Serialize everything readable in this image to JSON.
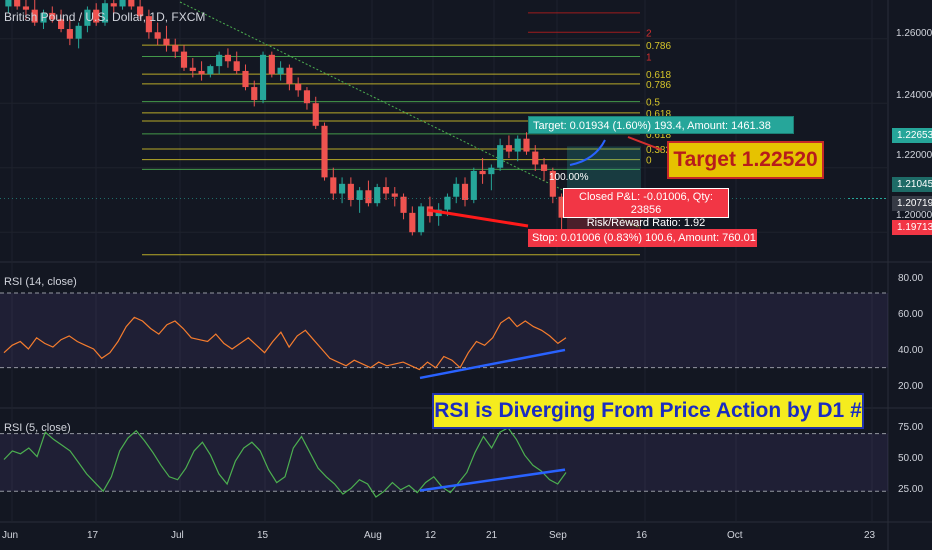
{
  "title": "British Pound / U.S. Dollar, 1D, FXCM",
  "rsi14_title": "RSI (14, close)",
  "rsi5_title": "RSI (5, close)",
  "colors": {
    "background": "#131722",
    "up": "#26a69a",
    "down": "#ef5350",
    "rsi14_line": "#f57c2e",
    "rsi5_line": "#4caf50",
    "divergence_line": "#2962ff",
    "trend_line": "#4caf50",
    "fib_line": "#d4c42a"
  },
  "annotations": {
    "target_box": "Target: 0.01934 (1.60%) 193.4, Amount: 1461.38",
    "stop_box": "Stop: 0.01006 (0.83%) 100.6, Amount: 760.01",
    "closed_pl": "Closed P&L: -0.01006, Qty: 23856",
    "risk_reward": "Risk/Reward Ratio: 1.92",
    "target_callout": "Target 1.22520",
    "note": "RSI is Diverging From Price Action by D1 #",
    "percent_label": "100.00%"
  },
  "price_badges": [
    {
      "value": "1.22653",
      "color": "#26a69a",
      "price": 1.22653
    },
    {
      "value": "1.21045",
      "color": "#1e6b67",
      "price": 1.21045
    },
    {
      "value": "1.20719",
      "color": "#363a45",
      "price": 1.20719
    },
    {
      "value": "1.19713",
      "color": "#f23645",
      "price": 1.19713
    }
  ],
  "fib_labels": [
    "2",
    "0.786",
    "1",
    "0.618",
    "0.786",
    "0.5",
    "0.618",
    "0.382",
    "0.618",
    "0.382",
    "0"
  ],
  "chart_data": [
    {
      "type": "candlestick",
      "title": "British Pound / U.S. Dollar, 1D, FXCM",
      "x_ticks": [
        "Jun",
        "17",
        "Jul",
        "15",
        "Aug",
        "12",
        "21",
        "Sep",
        "16",
        "Oct",
        "23"
      ],
      "y_ticks": [
        "1.26000",
        "1.24000",
        "1.22000",
        "1.20000"
      ],
      "ylim": [
        1.192,
        1.272
      ],
      "candles": [
        [
          1.27,
          1.2735,
          1.268,
          1.272
        ],
        [
          1.272,
          1.274,
          1.269,
          1.27
        ],
        [
          1.27,
          1.273,
          1.266,
          1.269
        ],
        [
          1.269,
          1.272,
          1.264,
          1.265
        ],
        [
          1.265,
          1.269,
          1.263,
          1.268
        ],
        [
          1.268,
          1.27,
          1.265,
          1.266
        ],
        [
          1.266,
          1.269,
          1.262,
          1.263
        ],
        [
          1.263,
          1.266,
          1.258,
          1.26
        ],
        [
          1.26,
          1.265,
          1.257,
          1.264
        ],
        [
          1.264,
          1.27,
          1.262,
          1.269
        ],
        [
          1.269,
          1.271,
          1.264,
          1.265
        ],
        [
          1.265,
          1.272,
          1.264,
          1.271
        ],
        [
          1.271,
          1.274,
          1.268,
          1.27
        ],
        [
          1.27,
          1.274,
          1.269,
          1.273
        ],
        [
          1.273,
          1.276,
          1.269,
          1.27
        ],
        [
          1.27,
          1.273,
          1.266,
          1.267
        ],
        [
          1.267,
          1.269,
          1.26,
          1.262
        ],
        [
          1.262,
          1.265,
          1.258,
          1.26
        ],
        [
          1.26,
          1.264,
          1.256,
          1.258
        ],
        [
          1.258,
          1.26,
          1.254,
          1.256
        ],
        [
          1.256,
          1.258,
          1.25,
          1.251
        ],
        [
          1.251,
          1.254,
          1.248,
          1.25
        ],
        [
          1.25,
          1.253,
          1.247,
          1.249
        ],
        [
          1.249,
          1.252,
          1.248,
          1.2515
        ],
        [
          1.2515,
          1.256,
          1.249,
          1.255
        ],
        [
          1.255,
          1.257,
          1.251,
          1.253
        ],
        [
          1.253,
          1.256,
          1.249,
          1.25
        ],
        [
          1.25,
          1.252,
          1.244,
          1.245
        ],
        [
          1.245,
          1.247,
          1.239,
          1.241
        ],
        [
          1.241,
          1.256,
          1.24,
          1.255
        ],
        [
          1.255,
          1.256,
          1.248,
          1.249
        ],
        [
          1.249,
          1.253,
          1.247,
          1.251
        ],
        [
          1.251,
          1.252,
          1.244,
          1.246
        ],
        [
          1.246,
          1.248,
          1.242,
          1.244
        ],
        [
          1.244,
          1.245,
          1.238,
          1.24
        ],
        [
          1.24,
          1.242,
          1.232,
          1.233
        ],
        [
          1.233,
          1.234,
          1.216,
          1.217
        ],
        [
          1.217,
          1.22,
          1.21,
          1.212
        ],
        [
          1.212,
          1.217,
          1.209,
          1.215
        ],
        [
          1.215,
          1.217,
          1.208,
          1.21
        ],
        [
          1.21,
          1.214,
          1.206,
          1.213
        ],
        [
          1.213,
          1.216,
          1.208,
          1.209
        ],
        [
          1.209,
          1.215,
          1.208,
          1.214
        ],
        [
          1.214,
          1.217,
          1.21,
          1.212
        ],
        [
          1.212,
          1.214,
          1.208,
          1.211
        ],
        [
          1.211,
          1.212,
          1.204,
          1.206
        ],
        [
          1.206,
          1.208,
          1.199,
          1.2
        ],
        [
          1.2,
          1.209,
          1.199,
          1.208
        ],
        [
          1.208,
          1.211,
          1.203,
          1.205
        ],
        [
          1.205,
          1.209,
          1.202,
          1.207
        ],
        [
          1.207,
          1.212,
          1.205,
          1.211
        ],
        [
          1.211,
          1.217,
          1.209,
          1.215
        ],
        [
          1.215,
          1.217,
          1.208,
          1.21
        ],
        [
          1.21,
          1.22,
          1.209,
          1.219
        ],
        [
          1.219,
          1.223,
          1.215,
          1.218
        ],
        [
          1.218,
          1.221,
          1.213,
          1.22
        ],
        [
          1.22,
          1.229,
          1.219,
          1.227
        ],
        [
          1.227,
          1.23,
          1.223,
          1.225
        ],
        [
          1.225,
          1.23,
          1.222,
          1.229
        ],
        [
          1.229,
          1.231,
          1.224,
          1.225
        ],
        [
          1.225,
          1.227,
          1.219,
          1.221
        ],
        [
          1.221,
          1.223,
          1.216,
          1.219
        ],
        [
          1.219,
          1.22,
          1.209,
          1.211
        ],
        [
          1.211,
          1.212,
          1.2,
          1.2045
        ]
      ],
      "fib_levels": [
        1.268,
        1.262,
        1.258,
        1.2545,
        1.249,
        1.246,
        1.2405,
        1.237,
        1.2345,
        1.2305,
        1.2258,
        1.2225,
        1.2195,
        1.193
      ]
    },
    {
      "type": "line",
      "title": "RSI (14, close)",
      "y_ticks": [
        "80.00",
        "60.00",
        "40.00",
        "20.00"
      ],
      "ylim": [
        10,
        85
      ],
      "band": [
        30,
        70
      ],
      "series": [
        {
          "values": [
            38,
            42,
            44,
            40,
            46,
            43,
            41,
            45,
            47,
            44,
            42,
            40,
            35,
            38,
            44,
            52,
            57,
            55,
            51,
            48,
            53,
            55,
            51,
            46,
            45,
            44,
            48,
            43,
            40,
            43,
            46,
            42,
            38,
            44,
            49,
            41,
            47,
            50,
            45,
            40,
            35,
            33,
            31,
            34,
            32,
            30,
            33,
            31,
            32,
            33,
            31,
            29,
            33,
            30,
            36,
            34,
            30,
            38,
            44,
            42,
            46,
            54,
            57,
            52,
            55,
            52,
            50,
            47,
            43,
            46
          ]
        }
      ],
      "divergence": [
        [
          24.5,
          39.5
        ]
      ]
    },
    {
      "type": "line",
      "title": "RSI (5, close)",
      "y_ticks": [
        "75.00",
        "50.00",
        "25.00"
      ],
      "ylim": [
        10,
        85
      ],
      "band": [
        30,
        70
      ],
      "series": [
        {
          "values": [
            52,
            58,
            56,
            60,
            54,
            71,
            66,
            62,
            58,
            50,
            42,
            36,
            30,
            40,
            58,
            67,
            72,
            65,
            57,
            48,
            40,
            38,
            46,
            58,
            64,
            55,
            42,
            35,
            51,
            60,
            64,
            58,
            45,
            36,
            40,
            60,
            68,
            57,
            46,
            40,
            35,
            28,
            32,
            38,
            35,
            26,
            30,
            36,
            31,
            34,
            29,
            36,
            40,
            33,
            29,
            36,
            43,
            57,
            68,
            60,
            71,
            74,
            66,
            55,
            48,
            44,
            38,
            35,
            43
          ]
        }
      ],
      "divergence": [
        [
          30.5,
          45.0
        ]
      ]
    }
  ]
}
